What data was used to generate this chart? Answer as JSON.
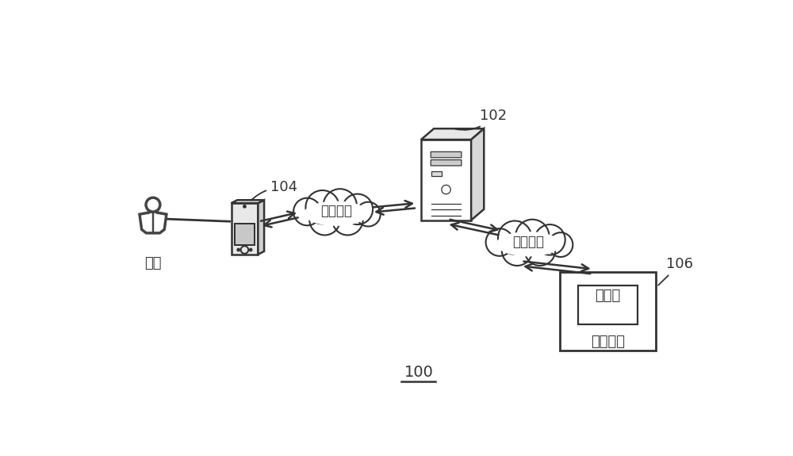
{
  "bg_color": "#ffffff",
  "line_color": "#333333",
  "label_100": "100",
  "label_102": "102",
  "label_104": "104",
  "label_106": "106",
  "text_user": "用户",
  "text_cloud1": "网络连接",
  "text_cloud2": "网络连接",
  "text_display": "显示屏",
  "text_controlled": "受控设备",
  "figure_width": 10.0,
  "figure_height": 5.75
}
